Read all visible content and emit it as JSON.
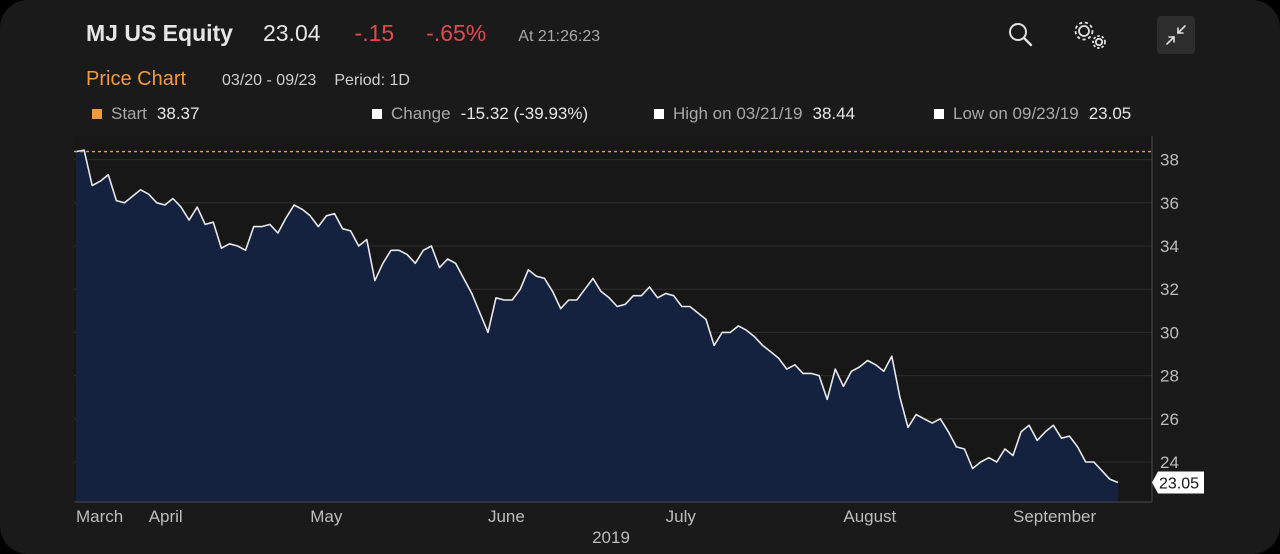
{
  "header": {
    "ticker": "MJ US Equity",
    "price": "23.04",
    "change": "-.15",
    "change_pct": "-.65%",
    "timestamp": "At 21:26:23",
    "icons": [
      "search-icon",
      "gears-icon",
      "collapse-icon"
    ]
  },
  "subheader": {
    "title": "Price Chart",
    "range": "03/20 - 09/23",
    "period": "Period: 1D"
  },
  "stats": {
    "start": {
      "label": "Start",
      "value": "38.37",
      "color": "#f39a3b"
    },
    "change": {
      "label": "Change",
      "value": "-15.32 (-39.93%)",
      "color": "#ffffff"
    },
    "high": {
      "label": "High on 03/21/19",
      "value": "38.44",
      "color": "#ffffff"
    },
    "low": {
      "label": "Low on 09/23/19",
      "value": "23.05",
      "color": "#ffffff"
    }
  },
  "colors": {
    "accent": "#f39a3b",
    "negative": "#e5484d",
    "area_fill": "#14223f",
    "line": "#e8e8e8"
  },
  "chart_data": {
    "type": "area",
    "ylim": [
      23,
      38.9
    ],
    "y_ticks": [
      24,
      26,
      28,
      30,
      32,
      34,
      36,
      38
    ],
    "x_labels": [
      {
        "label": "March",
        "index": 0
      },
      {
        "label": "April",
        "index": 9
      },
      {
        "label": "May",
        "index": 29
      },
      {
        "label": "June",
        "index": 51
      },
      {
        "label": "July",
        "index": 73
      },
      {
        "label": "August",
        "index": 95
      },
      {
        "label": "September",
        "index": 116
      }
    ],
    "year_label": "2019",
    "reference_line": 38.37,
    "last_value_label": "23.05",
    "values": [
      38.37,
      38.44,
      36.8,
      37.0,
      37.3,
      36.1,
      36.0,
      36.3,
      36.6,
      36.4,
      36.0,
      35.9,
      36.2,
      35.8,
      35.2,
      35.8,
      35.0,
      35.1,
      33.9,
      34.1,
      34.0,
      33.8,
      34.9,
      34.9,
      35.0,
      34.6,
      35.3,
      35.9,
      35.7,
      35.4,
      34.9,
      35.4,
      35.5,
      34.8,
      34.7,
      34.0,
      34.3,
      32.4,
      33.2,
      33.8,
      33.8,
      33.6,
      33.2,
      33.8,
      34.0,
      33.0,
      33.4,
      33.2,
      32.5,
      31.8,
      30.9,
      30.0,
      31.6,
      31.5,
      31.5,
      32.0,
      32.9,
      32.6,
      32.5,
      31.9,
      31.1,
      31.5,
      31.5,
      32.0,
      32.5,
      31.9,
      31.6,
      31.2,
      31.3,
      31.7,
      31.7,
      32.1,
      31.6,
      31.8,
      31.7,
      31.2,
      31.2,
      30.9,
      30.6,
      29.4,
      30.0,
      30.0,
      30.3,
      30.1,
      29.8,
      29.4,
      29.1,
      28.8,
      28.3,
      28.5,
      28.1,
      28.1,
      28.0,
      26.9,
      28.3,
      27.5,
      28.2,
      28.4,
      28.7,
      28.5,
      28.2,
      28.9,
      27.0,
      25.6,
      26.2,
      26.0,
      25.8,
      26.0,
      25.4,
      24.7,
      24.6,
      23.7,
      24.0,
      24.2,
      24.0,
      24.6,
      24.3,
      25.4,
      25.7,
      25.0,
      25.4,
      25.7,
      25.1,
      25.2,
      24.7,
      24.0,
      24.0,
      23.6,
      23.2,
      23.05
    ]
  }
}
